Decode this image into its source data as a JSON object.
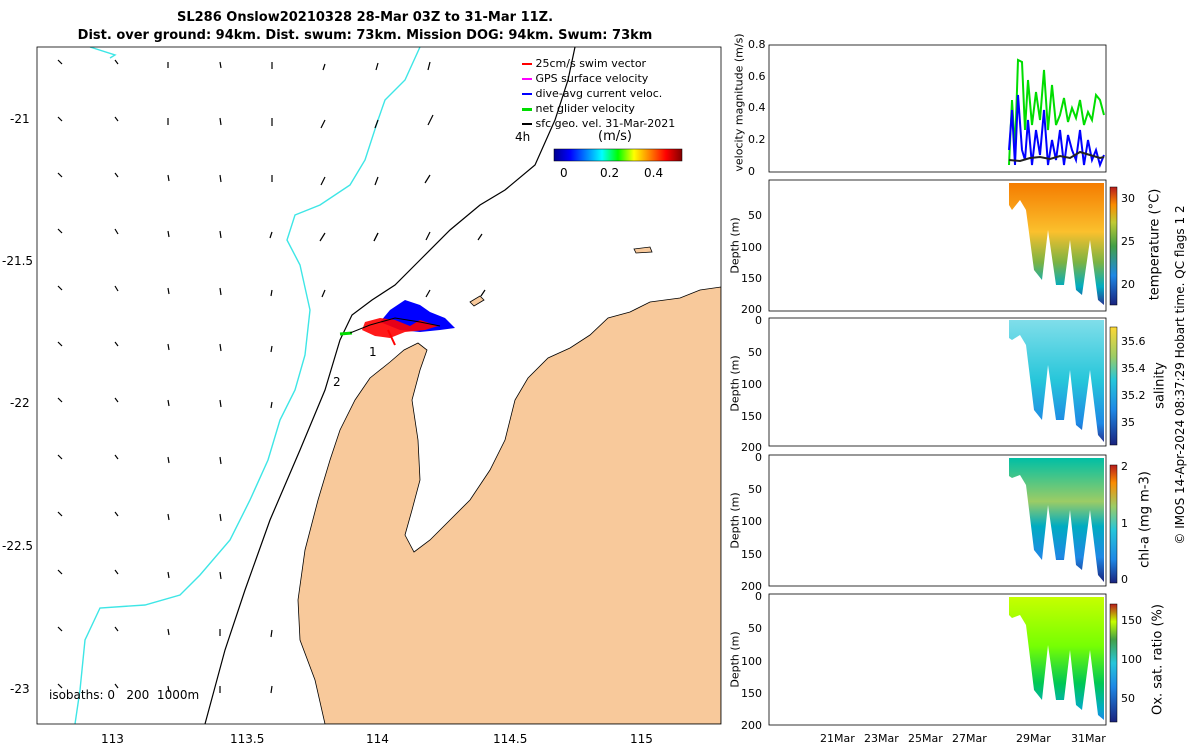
{
  "header": {
    "title_line1": "SL286 Onslow20210328 28-Mar 03Z to 31-Mar 11Z.",
    "title_line2": "Dist. over ground: 94km. Dist. swum: 73km. Mission DOG: 94km. Swum: 73km"
  },
  "map": {
    "x_ticks": [
      "113",
      "113.5",
      "114",
      "114.5",
      "115"
    ],
    "y_ticks": [
      "-21",
      "-21.5",
      "-22",
      "-22.5",
      "-23"
    ],
    "isobaths_label": "isobaths: 0   200  1000m",
    "track_labels": [
      "1",
      "2"
    ],
    "time_label": "4h",
    "colorbar_title": "(m/s)",
    "colorbar_ticks": [
      "0",
      "0.2",
      "0.4"
    ],
    "land_color": "#f8c99b",
    "isobath_1000_color": "#3ee6e6",
    "legend": [
      {
        "label": "25cm/s swim vector",
        "color": "#ff0000"
      },
      {
        "label": "GPS surface velocity",
        "color": "#ff00ff"
      },
      {
        "label": "dive-avg current veloc.",
        "color": "#0000ff"
      },
      {
        "label": "net glider velocity",
        "color": "#00dd00"
      },
      {
        "label": "sfc geo. vel. 31-Mar-2021",
        "color": "#000000"
      }
    ]
  },
  "panels": {
    "velocity": {
      "ylabel": "velocity magnitude (m/s)",
      "yticks": [
        "0",
        "0.2",
        "0.4",
        "0.6",
        "0.8"
      ]
    },
    "temperature": {
      "ylabel": "Depth (m)",
      "cblabel": "temperature (°C)",
      "yticks": [
        "50",
        "100",
        "150",
        "200"
      ],
      "cbticks": [
        "30",
        "25",
        "20"
      ]
    },
    "salinity": {
      "ylabel": "Depth (m)",
      "cblabel": "salinity",
      "yticks": [
        "0",
        "50",
        "100",
        "150",
        "200"
      ],
      "cbticks": [
        "35.6",
        "35.4",
        "35.2",
        "35"
      ]
    },
    "chla": {
      "ylabel": "Depth (m)",
      "cblabel": "chl-a (mg m-3)",
      "yticks": [
        "0",
        "50",
        "100",
        "150",
        "200"
      ],
      "cbticks": [
        "2",
        "1",
        "0"
      ]
    },
    "oxygen": {
      "ylabel": "Depth (m)",
      "cblabel": "Ox. sat. ratio (%)",
      "yticks": [
        "0",
        "50",
        "100",
        "150",
        "200"
      ],
      "cbticks": [
        "150",
        "100",
        "50"
      ]
    },
    "x_ticks": [
      "21Mar",
      "23Mar",
      "25Mar",
      "27Mar",
      "29Mar",
      "31Mar"
    ]
  },
  "footer_credit": "© IMOS 14-Apr-2024 08:37:29 Hobart time. QC flags 1  2",
  "chart_data": [
    {
      "type": "scatter",
      "title": "SL286 Onslow20210328 28-Mar 03Z to 31-Mar 11Z.",
      "xlim": [
        112.7,
        115.3
      ],
      "ylim": [
        -23.1,
        -20.75
      ],
      "glider_track": [
        [
          113.83,
          -21.73
        ],
        [
          113.95,
          -21.72
        ],
        [
          114.05,
          -21.7
        ],
        [
          114.15,
          -21.73
        ],
        [
          114.22,
          -21.75
        ]
      ],
      "labels": {
        "1": [
          113.98,
          -21.79
        ],
        "2": [
          113.83,
          -21.88
        ]
      }
    },
    {
      "type": "line",
      "ylabel": "velocity magnitude (m/s)",
      "ylim": [
        0,
        0.8
      ],
      "x_ticks": [
        "21Mar",
        "23Mar",
        "25Mar",
        "27Mar",
        "29Mar",
        "31Mar"
      ],
      "series": [
        {
          "name": "net glider velocity",
          "values": [
            0.3,
            0.6,
            0.7,
            0.45,
            0.35,
            0.5,
            0.4,
            0.55,
            0.45,
            0.4
          ]
        },
        {
          "name": "dive-avg current veloc.",
          "values": [
            0.1,
            0.45,
            0.35,
            0.15,
            0.45,
            0.1,
            0.3,
            0.4,
            0.15,
            0.1
          ]
        },
        {
          "name": "sfc geo. vel.",
          "values": [
            0.08,
            0.07,
            0.09,
            0.1,
            0.08,
            0.1,
            0.12,
            0.09,
            0.1,
            0.08
          ]
        }
      ]
    },
    {
      "type": "heatmap",
      "label": "temperature (°C)",
      "clim": [
        18,
        31
      ],
      "ylim": [
        0,
        200
      ]
    },
    {
      "type": "heatmap",
      "label": "salinity",
      "clim": [
        34.9,
        35.7
      ],
      "ylim": [
        0,
        200
      ]
    },
    {
      "type": "heatmap",
      "label": "chl-a (mg m-3)",
      "clim": [
        0,
        2
      ],
      "ylim": [
        0,
        200
      ]
    },
    {
      "type": "heatmap",
      "label": "Ox. sat. ratio (%)",
      "clim": [
        30,
        170
      ],
      "ylim": [
        0,
        200
      ]
    }
  ]
}
